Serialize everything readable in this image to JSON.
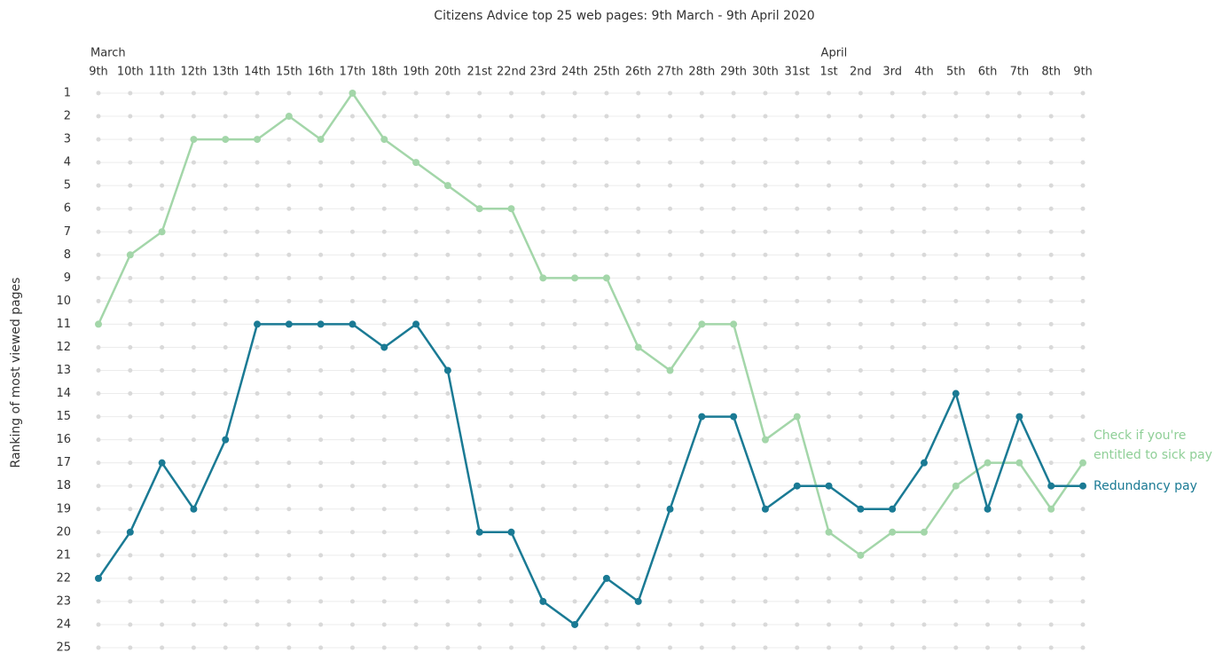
{
  "chart_data": {
    "type": "bump",
    "title": "Citizens Advice top 25 web pages: 9th March - 9th April 2020",
    "y_label": "Ranking of most viewed pages",
    "category_groups": [
      {
        "name": "March",
        "categories": [
          "9th",
          "10th",
          "11th",
          "12th",
          "13th",
          "14th",
          "15th",
          "16th",
          "17th",
          "18th",
          "19th",
          "20th",
          "21st",
          "22nd",
          "23rd",
          "24th",
          "25th",
          "26th",
          "27th",
          "28th",
          "29th",
          "30th",
          "31st"
        ]
      },
      {
        "name": "April",
        "categories": [
          "1st",
          "2nd",
          "3rd",
          "4th",
          "5th",
          "6th",
          "7th",
          "8th",
          "9th"
        ]
      }
    ],
    "ylim": [
      1,
      25
    ],
    "invert_y": true,
    "yticks": [
      1,
      2,
      3,
      4,
      5,
      6,
      7,
      8,
      9,
      10,
      11,
      12,
      13,
      14,
      15,
      16,
      17,
      18,
      19,
      20,
      21,
      22,
      23,
      24,
      25
    ],
    "series": [
      {
        "name": "Check if you're entitled to sick pay",
        "color": "#a3d6a9",
        "values": [
          11,
          8,
          7,
          3,
          3,
          3,
          2,
          3,
          1,
          3,
          4,
          5,
          6,
          6,
          9,
          9,
          9,
          12,
          13,
          11,
          11,
          16,
          15,
          20,
          21,
          20,
          20,
          18,
          17,
          17,
          19,
          17
        ]
      },
      {
        "name": "Redundancy pay",
        "color": "#1a7a94",
        "values": [
          22,
          20,
          17,
          19,
          16,
          11,
          11,
          11,
          11,
          12,
          11,
          13,
          20,
          20,
          23,
          24,
          22,
          23,
          19,
          15,
          15,
          19,
          18,
          18,
          19,
          19,
          17,
          14,
          19,
          15,
          18,
          18
        ]
      }
    ]
  }
}
